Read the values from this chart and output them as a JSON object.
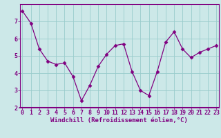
{
  "x": [
    0,
    1,
    2,
    3,
    4,
    5,
    6,
    7,
    8,
    9,
    10,
    11,
    12,
    13,
    14,
    15,
    16,
    17,
    18,
    19,
    20,
    21,
    22,
    23
  ],
  "y": [
    7.6,
    6.9,
    5.4,
    4.7,
    4.5,
    4.6,
    3.8,
    2.4,
    3.3,
    4.4,
    5.1,
    5.6,
    5.7,
    4.1,
    3.0,
    2.7,
    4.1,
    5.8,
    6.4,
    5.4,
    4.9,
    5.2,
    5.4,
    5.6
  ],
  "line_color": "#800080",
  "marker": "D",
  "marker_size": 2.5,
  "bg_color": "#cce8e8",
  "grid_color": "#99cccc",
  "xlabel": "Windchill (Refroidissement éolien,°C)",
  "ylim": [
    2,
    8
  ],
  "xlim": [
    -0.3,
    23.3
  ],
  "yticks": [
    2,
    3,
    4,
    5,
    6,
    7
  ],
  "xticks": [
    0,
    1,
    2,
    3,
    4,
    5,
    6,
    7,
    8,
    9,
    10,
    11,
    12,
    13,
    14,
    15,
    16,
    17,
    18,
    19,
    20,
    21,
    22,
    23
  ],
  "xlabel_fontsize": 6.5,
  "tick_fontsize": 6.0,
  "tick_color": "#800080",
  "axis_color": "#800080",
  "separator_color": "#800080"
}
